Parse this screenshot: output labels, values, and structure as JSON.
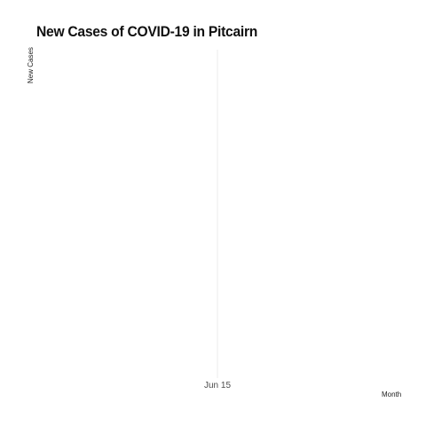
{
  "chart_data": {
    "type": "line",
    "title": "New Cases of COVID-19 in Pitcairn",
    "xlabel": "Month",
    "ylabel": "New Cases",
    "x_ticks": [
      "Jun 15"
    ],
    "series": [
      {
        "values": []
      }
    ],
    "grid": true,
    "legend": "none",
    "colors": {
      "grid": "#ebebeb",
      "title": "#111111",
      "tick_text": "#4d4d4d",
      "background": "#ffffff"
    }
  }
}
